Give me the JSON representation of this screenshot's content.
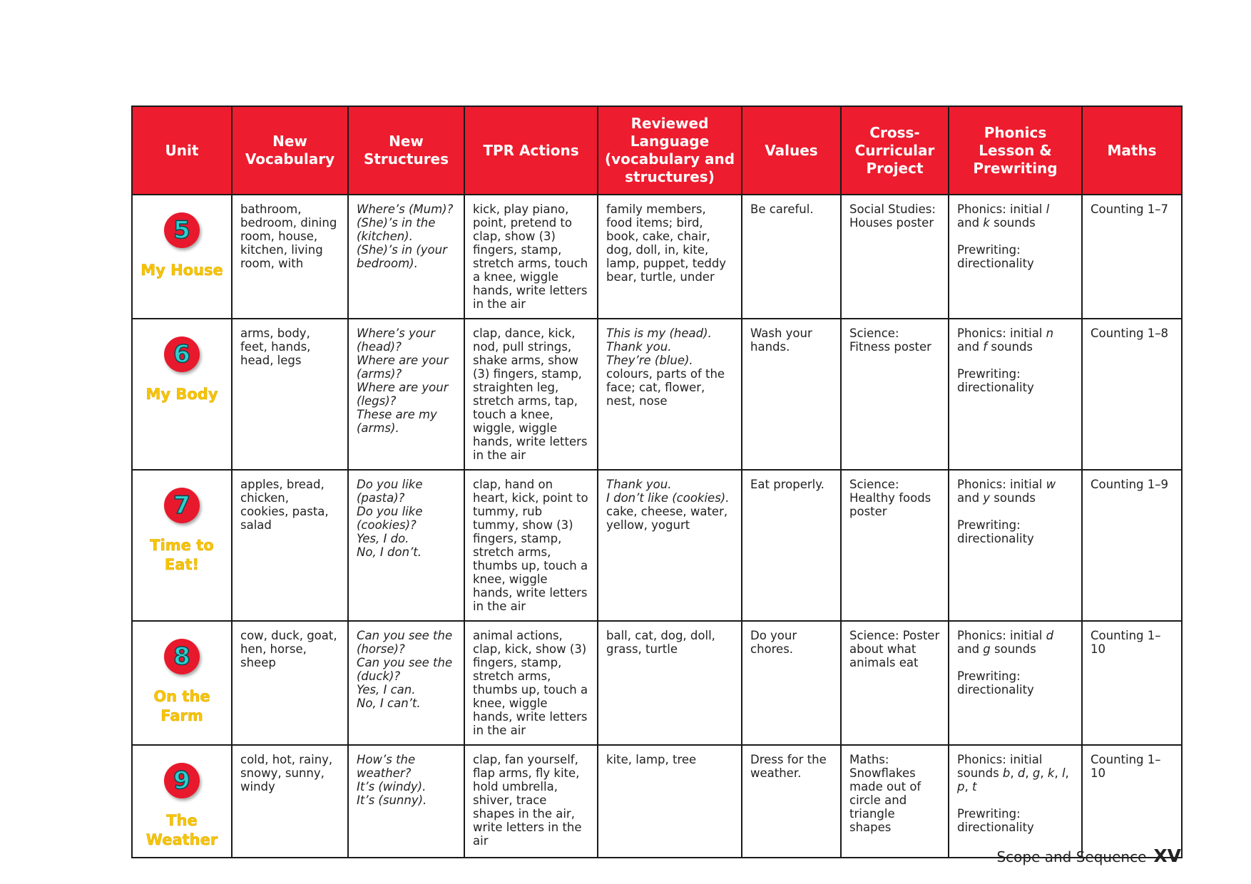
{
  "table": {
    "header": [
      "Unit",
      "New Vocabulary",
      "New Structures",
      "TPR Actions",
      "Reviewed Language (vocabulary and structures)",
      "Values",
      "Cross-Curricular Project",
      "Phonics Lesson & Prewriting",
      "Maths"
    ],
    "rows": [
      {
        "number": "5",
        "title": "My House",
        "cells": [
          [
            [
              "bathroom, bedroom, dining room, house, kitchen, living room, with"
            ]
          ],
          [
            [
              {
                "italic": "Where’s (Mum)?"
              }
            ],
            [
              {
                "italic": "(She)’s in the (kitchen)."
              }
            ],
            [
              {
                "italic": "(She)’s in (your bedroom)."
              }
            ]
          ],
          [
            [
              "kick, play piano, point, pretend to clap, show (3) fingers, stamp, stretch arms, touch a knee, wiggle hands, write letters in the air"
            ]
          ],
          [
            [
              "family members, food items; bird, book, cake, chair, dog, doll, in, kite, lamp, puppet, teddy bear, turtle, under"
            ]
          ],
          [
            [
              "Be careful."
            ]
          ],
          [
            [
              "Social Studies: Houses poster"
            ]
          ],
          [
            [
              "Phonics: initial ",
              {
                "italic": "l"
              },
              " and ",
              {
                "italic": "k"
              },
              " sounds"
            ],
            [
              "Prewriting: directionality"
            ]
          ],
          [
            [
              "Counting 1–7"
            ]
          ]
        ]
      },
      {
        "number": "6",
        "title": "My Body",
        "cells": [
          [
            [
              "arms, body, feet, hands, head, legs"
            ]
          ],
          [
            [
              {
                "italic": "Where’s your (head)?"
              }
            ],
            [
              {
                "italic": "Where are your (arms)?"
              }
            ],
            [
              {
                "italic": "Where are your (legs)?"
              }
            ],
            [
              {
                "italic": "These are my (arms)."
              }
            ]
          ],
          [
            [
              "clap, dance, kick, nod, pull strings, shake arms, show (3) fingers, stamp, straighten leg, stretch arms, tap, touch a knee, wiggle, wiggle hands, write letters in the air"
            ]
          ],
          [
            [
              {
                "italic": "This is my (head)."
              }
            ],
            [
              {
                "italic": "Thank you."
              }
            ],
            [
              {
                "italic": "They’re (blue)."
              }
            ],
            [
              "colours, parts of the face; cat, flower, nest, nose"
            ]
          ],
          [
            [
              "Wash your hands."
            ]
          ],
          [
            [
              "Science: Fitness poster"
            ]
          ],
          [
            [
              "Phonics: initial ",
              {
                "italic": "n"
              },
              " and ",
              {
                "italic": "f"
              },
              " sounds"
            ],
            [
              "Prewriting: directionality"
            ]
          ],
          [
            [
              "Counting 1–8"
            ]
          ]
        ]
      },
      {
        "number": "7",
        "title": "Time to Eat!",
        "cells": [
          [
            [
              "apples, bread, chicken, cookies, pasta, salad"
            ]
          ],
          [
            [
              {
                "italic": "Do you like (pasta)?"
              }
            ],
            [
              {
                "italic": "Do you like (cookies)?"
              }
            ],
            [
              {
                "italic": "Yes, I do."
              }
            ],
            [
              {
                "italic": "No, I don’t."
              }
            ]
          ],
          [
            [
              "clap, hand on heart, kick, point to tummy, rub tummy, show (3) fingers, stamp, stretch arms, thumbs up, touch a knee, wiggle hands, write letters in the air"
            ]
          ],
          [
            [
              {
                "italic": "Thank you."
              }
            ],
            [
              {
                "italic": "I don’t like (cookies)."
              }
            ],
            [
              "cake, cheese, water, yellow, yogurt"
            ]
          ],
          [
            [
              "Eat properly."
            ]
          ],
          [
            [
              "Science: Healthy foods poster"
            ]
          ],
          [
            [
              "Phonics: initial ",
              {
                "italic": "w"
              },
              " and ",
              {
                "italic": "y"
              },
              " sounds"
            ],
            [
              "Prewriting: directionality"
            ]
          ],
          [
            [
              "Counting 1–9"
            ]
          ]
        ]
      },
      {
        "number": "8",
        "title": "On the Farm",
        "cells": [
          [
            [
              "cow, duck, goat, hen, horse, sheep"
            ]
          ],
          [
            [
              {
                "italic": "Can you see the (horse)?"
              }
            ],
            [
              {
                "italic": "Can you see the (duck)?"
              }
            ],
            [
              {
                "italic": "Yes, I can."
              }
            ],
            [
              {
                "italic": "No, I can’t."
              }
            ]
          ],
          [
            [
              "animal actions, clap, kick, show (3) fingers, stamp, stretch arms, thumbs up, touch a knee, wiggle hands, write letters in the air"
            ]
          ],
          [
            [
              "ball, cat, dog, doll, grass, turtle"
            ]
          ],
          [
            [
              "Do your chores."
            ]
          ],
          [
            [
              "Science: Poster about what animals eat"
            ]
          ],
          [
            [
              "Phonics: initial ",
              {
                "italic": "d"
              },
              " and ",
              {
                "italic": "g"
              },
              " sounds"
            ],
            [
              "Prewriting: directionality"
            ]
          ],
          [
            [
              "Counting 1–10"
            ]
          ]
        ]
      },
      {
        "number": "9",
        "title": "The Weather",
        "cells": [
          [
            [
              "cold, hot, rainy, snowy, sunny, windy"
            ]
          ],
          [
            [
              {
                "italic": "How’s the weather?"
              }
            ],
            [
              {
                "italic": "It’s (windy)."
              }
            ],
            [
              {
                "italic": "It’s (sunny)."
              }
            ]
          ],
          [
            [
              "clap, fan yourself, flap arms, fly kite, hold umbrella, shiver, trace shapes in the air, write letters in the air"
            ]
          ],
          [
            [
              "kite, lamp, tree"
            ]
          ],
          [
            [
              "Dress for the weather."
            ]
          ],
          [
            [
              "Maths: Snowflakes made out of circle and triangle shapes"
            ]
          ],
          [
            [
              "Phonics: initial sounds ",
              {
                "italic": "b"
              },
              ", ",
              {
                "italic": "d"
              },
              ", ",
              {
                "italic": "g"
              },
              ", ",
              {
                "italic": "k"
              },
              ", ",
              {
                "italic": "l"
              },
              ", ",
              {
                "italic": "p"
              },
              ", ",
              {
                "italic": "t"
              }
            ],
            [
              "Prewriting: directionality"
            ]
          ],
          [
            [
              "Counting 1–10"
            ]
          ]
        ]
      }
    ]
  },
  "footer": {
    "title": "Scope and Sequence",
    "page": "XV"
  }
}
